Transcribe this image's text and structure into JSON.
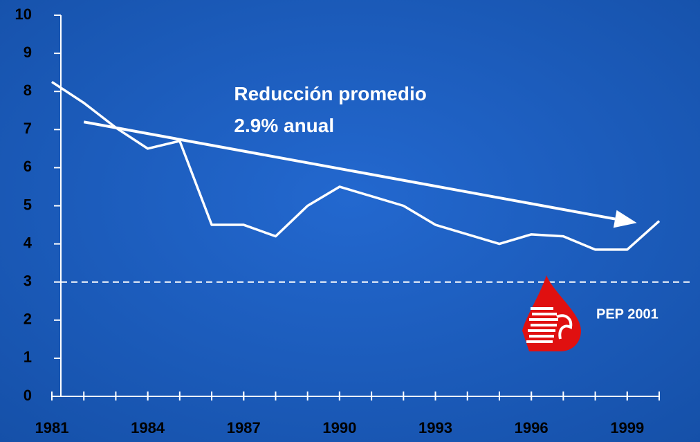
{
  "chart_data": {
    "type": "line",
    "x": [
      1981,
      1982,
      1983,
      1984,
      1985,
      1986,
      1987,
      1988,
      1989,
      1990,
      1991,
      1992,
      1993,
      1994,
      1995,
      1996,
      1997,
      1998,
      1999,
      2000
    ],
    "series": [
      {
        "color": "#ffffff",
        "values": [
          8.25,
          7.7,
          7.05,
          6.5,
          6.7,
          4.5,
          4.5,
          4.2,
          5.0,
          5.5,
          5.25,
          5.0,
          4.5,
          4.25,
          4.0,
          4.25,
          4.2,
          3.85,
          3.85,
          4.6
        ]
      }
    ],
    "xlim": [
      1981,
      2000
    ],
    "xticks": [
      1981,
      1984,
      1987,
      1990,
      1993,
      1996,
      1999
    ],
    "minor_tick_step": 1,
    "ylim": [
      0,
      10
    ],
    "yticks": [
      0,
      1,
      2,
      3,
      4,
      5,
      6,
      7,
      8,
      9,
      10
    ],
    "reference_line": {
      "y": 3,
      "color": "#ffffff"
    },
    "trend_arrow": {
      "from": [
        1982,
        7.2
      ],
      "to": [
        1999.3,
        4.55
      ],
      "color": "#ffffff"
    },
    "annotation": {
      "lines": [
        "Reducción promedio",
        "2.9% anual"
      ],
      "x": 1986.7,
      "y": 7.9
    },
    "logo_text": "PEP 2001"
  }
}
